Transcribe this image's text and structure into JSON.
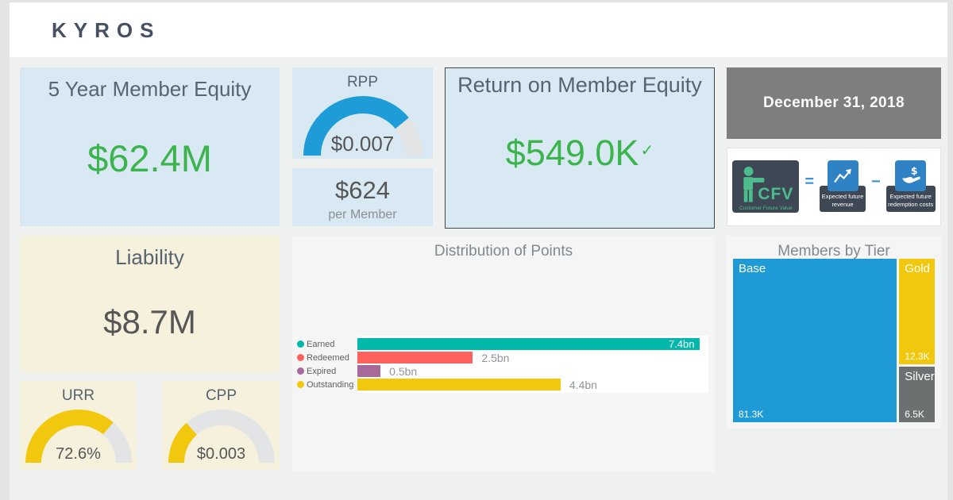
{
  "brand": {
    "name": "KYROS"
  },
  "colors": {
    "value_green": "#3cb44e",
    "gauge_blue": "#1d9cd8",
    "gauge_yellow": "#f2c80f",
    "gauge_track": "#e3e4e6"
  },
  "cards": {
    "equity5y": {
      "title": "5 Year Member Equity",
      "value": "$62.4M"
    },
    "rpp": {
      "title": "RPP",
      "value": "$0.007"
    },
    "per_member": {
      "value": "$624",
      "sublabel": "per Member"
    },
    "return_on_member_equity": {
      "title": "Return on Member Equity",
      "value": "$549.0K",
      "indicator": "✓"
    },
    "date": {
      "value": "December 31, 2018"
    },
    "liability": {
      "title": "Liability",
      "value": "$8.7M"
    },
    "urr": {
      "title": "URR",
      "value": "72.6%"
    },
    "cpp": {
      "title": "CPP",
      "value": "$0.003"
    }
  },
  "gauges": {
    "rpp": {
      "fill": 0.78,
      "color": "#1d9cd8"
    },
    "urr": {
      "fill": 0.726,
      "color": "#f2c80f"
    },
    "cpp": {
      "fill": 0.27,
      "color": "#f2c80f"
    }
  },
  "cfv": {
    "main_label": "CFV",
    "main_sublabel": "Customer Future Value",
    "equals": "=",
    "minus": "−",
    "revenue_label": "Expected future revenue",
    "redemption_label": "Expected future redemption costs"
  },
  "chart_data": [
    {
      "type": "bar",
      "orientation": "horizontal",
      "title": "Distribution of Points",
      "categories": [
        "Earned",
        "Redeemed",
        "Expired",
        "Outstanding"
      ],
      "values": [
        7.4,
        2.5,
        0.5,
        4.4
      ],
      "value_labels": [
        "7.4bn",
        "2.5bn",
        "0.5bn",
        "4.4bn"
      ],
      "colors": [
        "#01b8aa",
        "#fd625e",
        "#a66999",
        "#f2c80f"
      ],
      "unit": "bn",
      "xlim": [
        0,
        7.6
      ],
      "grid": false,
      "legend_position": "left"
    },
    {
      "type": "treemap",
      "title": "Members by Tier",
      "categories": [
        "Base",
        "Gold",
        "Silver"
      ],
      "values": [
        81300,
        12300,
        6500
      ],
      "value_labels": [
        "81.3K",
        "12.3K",
        "6.5K"
      ],
      "colors": [
        "#1e9ad6",
        "#f2c80f",
        "#6c7071"
      ]
    }
  ]
}
